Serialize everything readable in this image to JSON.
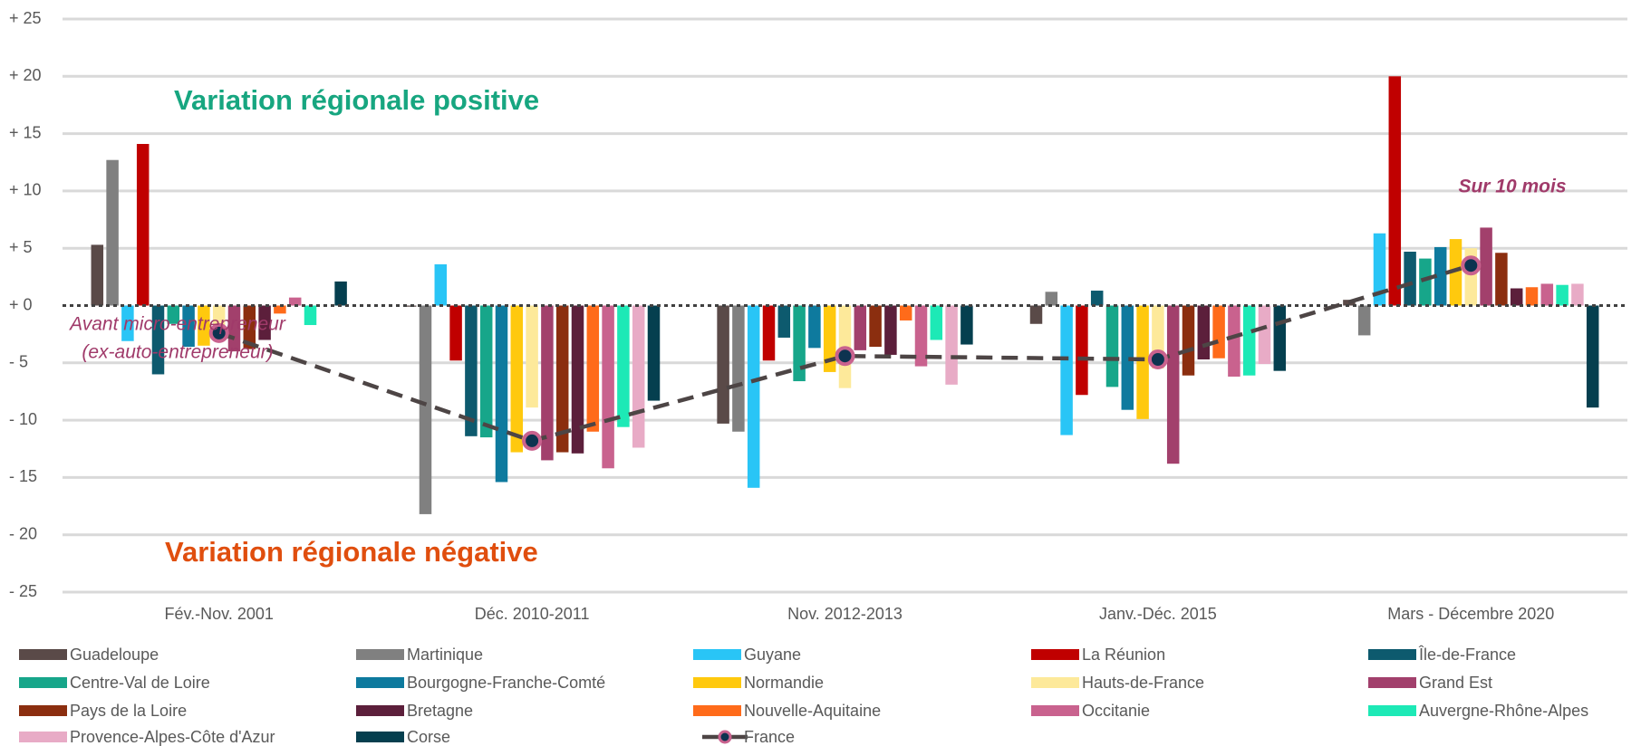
{
  "chart_data": {
    "type": "bar",
    "categories": [
      "Fév.-Nov. 2001",
      "Déc. 2010-2011",
      "Nov. 2012-2013",
      "Janv.-Déc. 2015",
      "Mars - Décembre 2020"
    ],
    "ylim": [
      -25,
      25
    ],
    "yticks": [
      {
        "value": 25,
        "label": "+ 25"
      },
      {
        "value": 20,
        "label": "+ 20"
      },
      {
        "value": 15,
        "label": "+ 15"
      },
      {
        "value": 10,
        "label": "+ 10"
      },
      {
        "value": 5,
        "label": "+ 5"
      },
      {
        "value": 0,
        "label": "+ 0"
      },
      {
        "value": -5,
        "label": "- 5"
      },
      {
        "value": -10,
        "label": "- 10"
      },
      {
        "value": -15,
        "label": "- 15"
      },
      {
        "value": -20,
        "label": "- 20"
      },
      {
        "value": -25,
        "label": "- 25"
      }
    ],
    "grid": true,
    "annotations": [
      "Variation régionale positive",
      "Variation régionale négative",
      "Avant micro-entrepreneur",
      "(ex-auto-entrepreneur)",
      "Sur 10 mois"
    ],
    "series": [
      {
        "name": "Guadeloupe",
        "color": "#5a4a48",
        "values": [
          5.3,
          -0.1,
          -10.3,
          -1.6,
          0.5
        ]
      },
      {
        "name": "Martinique",
        "color": "#808080",
        "values": [
          12.7,
          -18.2,
          -11.0,
          1.2,
          -2.6
        ]
      },
      {
        "name": "Guyane",
        "color": "#29c5f6",
        "values": [
          -3.1,
          3.6,
          -15.9,
          -11.3,
          6.3
        ]
      },
      {
        "name": "La Réunion",
        "color": "#c00000",
        "values": [
          14.1,
          -4.8,
          -4.8,
          -7.8,
          20.0
        ]
      },
      {
        "name": "Île-de-France",
        "color": "#0d5a6e",
        "values": [
          -6.0,
          -11.4,
          -2.8,
          1.3,
          4.7
        ]
      },
      {
        "name": "Centre-Val de Loire",
        "color": "#17a68a",
        "values": [
          -1.6,
          -11.5,
          -6.6,
          -7.1,
          4.1
        ]
      },
      {
        "name": "Bourgogne-Franche-Comté",
        "color": "#0e7a9e",
        "values": [
          -3.6,
          -15.4,
          -3.7,
          -9.1,
          5.1
        ]
      },
      {
        "name": "Normandie",
        "color": "#ffc90e",
        "values": [
          -3.5,
          -12.8,
          -5.8,
          -9.9,
          5.8
        ]
      },
      {
        "name": "Hauts-de-France",
        "color": "#fde99a",
        "values": [
          -2.5,
          -8.9,
          -7.2,
          -5.5,
          5.0
        ]
      },
      {
        "name": "Grand Est",
        "color": "#a2406c",
        "values": [
          -4.0,
          -13.5,
          -3.9,
          -13.8,
          6.8
        ]
      },
      {
        "name": "Pays de la Loire",
        "color": "#8b2e0f",
        "values": [
          -3.8,
          -12.8,
          -3.6,
          -6.1,
          4.6
        ]
      },
      {
        "name": "Bretagne",
        "color": "#5c1f3b",
        "values": [
          -3.0,
          -12.9,
          -4.3,
          -4.7,
          1.5
        ]
      },
      {
        "name": "Nouvelle-Aquitaine",
        "color": "#ff6b1a",
        "values": [
          -0.7,
          -11.0,
          -1.3,
          -4.6,
          1.6
        ]
      },
      {
        "name": "Occitanie",
        "color": "#c9628e",
        "values": [
          0.7,
          -14.2,
          -5.3,
          -6.2,
          1.9
        ]
      },
      {
        "name": "Auvergne-Rhône-Alpes",
        "color": "#1de9b6",
        "values": [
          -1.7,
          -10.6,
          -3.0,
          -6.1,
          1.8
        ]
      },
      {
        "name": "Provence-Alpes-Côte d'Azur",
        "color": "#e8abc6",
        "values": [
          0,
          -12.4,
          -6.9,
          -5.1,
          1.9
        ]
      },
      {
        "name": "Corse",
        "color": "#053f4f",
        "values": [
          2.1,
          -8.3,
          -3.4,
          -5.7,
          -8.9
        ]
      },
      {
        "name": "France",
        "type": "line",
        "color": "#4d4545",
        "marker_color": "#0d3350",
        "marker_edge": "#c9628e",
        "values": [
          -2.4,
          -11.8,
          -4.4,
          -4.7,
          3.5
        ]
      }
    ]
  }
}
